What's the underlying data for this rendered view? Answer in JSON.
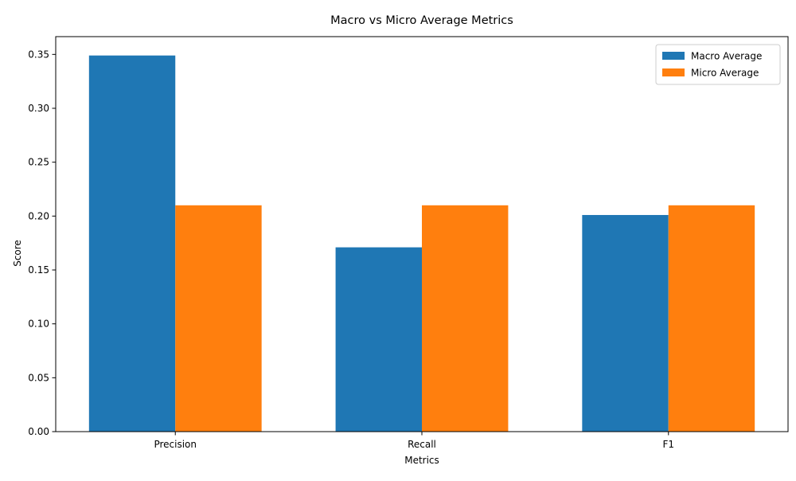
{
  "chart_data": {
    "type": "bar",
    "title": "Macro vs Micro Average Metrics",
    "xlabel": "Metrics",
    "ylabel": "Score",
    "categories": [
      "Precision",
      "Recall",
      "F1"
    ],
    "series": [
      {
        "name": "Macro Average",
        "values": [
          0.349,
          0.171,
          0.201
        ],
        "color": "#1f77b4"
      },
      {
        "name": "Micro Average",
        "values": [
          0.21,
          0.21,
          0.21
        ],
        "color": "#ff7f0e"
      }
    ],
    "ylim": [
      0,
      0.3665
    ],
    "yticks": [
      0.0,
      0.05,
      0.1,
      0.15,
      0.2,
      0.25,
      0.3,
      0.35
    ],
    "ytick_labels": [
      "0.00",
      "0.05",
      "0.10",
      "0.15",
      "0.20",
      "0.25",
      "0.30",
      "0.35"
    ],
    "grid": false,
    "legend_position": "top-right"
  }
}
